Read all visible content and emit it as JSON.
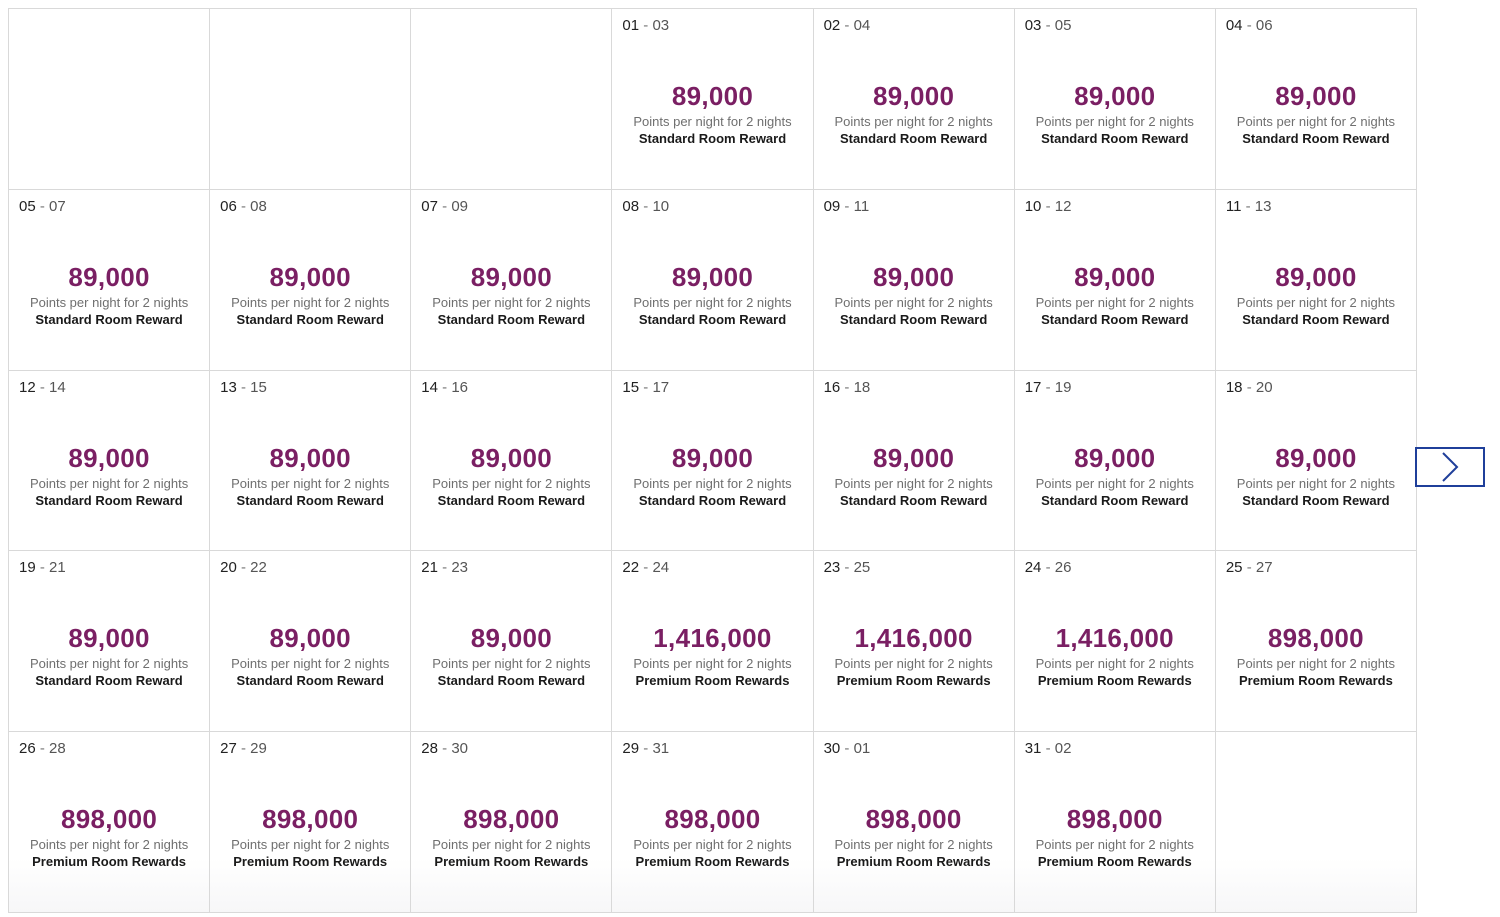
{
  "calendar": {
    "cells": [
      {
        "empty": true
      },
      {
        "empty": true
      },
      {
        "empty": true
      },
      {
        "start": "01",
        "end": "03",
        "points": "89,000",
        "subtitle": "Points per night for 2 nights",
        "reward": "Standard Room Reward"
      },
      {
        "start": "02",
        "end": "04",
        "points": "89,000",
        "subtitle": "Points per night for 2 nights",
        "reward": "Standard Room Reward"
      },
      {
        "start": "03",
        "end": "05",
        "points": "89,000",
        "subtitle": "Points per night for 2 nights",
        "reward": "Standard Room Reward"
      },
      {
        "start": "04",
        "end": "06",
        "points": "89,000",
        "subtitle": "Points per night for 2 nights",
        "reward": "Standard Room Reward"
      },
      {
        "start": "05",
        "end": "07",
        "points": "89,000",
        "subtitle": "Points per night for 2 nights",
        "reward": "Standard Room Reward"
      },
      {
        "start": "06",
        "end": "08",
        "points": "89,000",
        "subtitle": "Points per night for 2 nights",
        "reward": "Standard Room Reward"
      },
      {
        "start": "07",
        "end": "09",
        "points": "89,000",
        "subtitle": "Points per night for 2 nights",
        "reward": "Standard Room Reward"
      },
      {
        "start": "08",
        "end": "10",
        "points": "89,000",
        "subtitle": "Points per night for 2 nights",
        "reward": "Standard Room Reward"
      },
      {
        "start": "09",
        "end": "11",
        "points": "89,000",
        "subtitle": "Points per night for 2 nights",
        "reward": "Standard Room Reward"
      },
      {
        "start": "10",
        "end": "12",
        "points": "89,000",
        "subtitle": "Points per night for 2 nights",
        "reward": "Standard Room Reward"
      },
      {
        "start": "11",
        "end": "13",
        "points": "89,000",
        "subtitle": "Points per night for 2 nights",
        "reward": "Standard Room Reward"
      },
      {
        "start": "12",
        "end": "14",
        "points": "89,000",
        "subtitle": "Points per night for 2 nights",
        "reward": "Standard Room Reward"
      },
      {
        "start": "13",
        "end": "15",
        "points": "89,000",
        "subtitle": "Points per night for 2 nights",
        "reward": "Standard Room Reward"
      },
      {
        "start": "14",
        "end": "16",
        "points": "89,000",
        "subtitle": "Points per night for 2 nights",
        "reward": "Standard Room Reward"
      },
      {
        "start": "15",
        "end": "17",
        "points": "89,000",
        "subtitle": "Points per night for 2 nights",
        "reward": "Standard Room Reward"
      },
      {
        "start": "16",
        "end": "18",
        "points": "89,000",
        "subtitle": "Points per night for 2 nights",
        "reward": "Standard Room Reward"
      },
      {
        "start": "17",
        "end": "19",
        "points": "89,000",
        "subtitle": "Points per night for 2 nights",
        "reward": "Standard Room Reward"
      },
      {
        "start": "18",
        "end": "20",
        "points": "89,000",
        "subtitle": "Points per night for 2 nights",
        "reward": "Standard Room Reward"
      },
      {
        "start": "19",
        "end": "21",
        "points": "89,000",
        "subtitle": "Points per night for 2 nights",
        "reward": "Standard Room Reward"
      },
      {
        "start": "20",
        "end": "22",
        "points": "89,000",
        "subtitle": "Points per night for 2 nights",
        "reward": "Standard Room Reward"
      },
      {
        "start": "21",
        "end": "23",
        "points": "89,000",
        "subtitle": "Points per night for 2 nights",
        "reward": "Standard Room Reward"
      },
      {
        "start": "22",
        "end": "24",
        "points": "1,416,000",
        "subtitle": "Points per night for 2 nights",
        "reward": "Premium Room Rewards"
      },
      {
        "start": "23",
        "end": "25",
        "points": "1,416,000",
        "subtitle": "Points per night for 2 nights",
        "reward": "Premium Room Rewards"
      },
      {
        "start": "24",
        "end": "26",
        "points": "1,416,000",
        "subtitle": "Points per night for 2 nights",
        "reward": "Premium Room Rewards"
      },
      {
        "start": "25",
        "end": "27",
        "points": "898,000",
        "subtitle": "Points per night for 2 nights",
        "reward": "Premium Room Rewards"
      },
      {
        "start": "26",
        "end": "28",
        "points": "898,000",
        "subtitle": "Points per night for 2 nights",
        "reward": "Premium Room Rewards"
      },
      {
        "start": "27",
        "end": "29",
        "points": "898,000",
        "subtitle": "Points per night for 2 nights",
        "reward": "Premium Room Rewards"
      },
      {
        "start": "28",
        "end": "30",
        "points": "898,000",
        "subtitle": "Points per night for 2 nights",
        "reward": "Premium Room Rewards"
      },
      {
        "start": "29",
        "end": "31",
        "points": "898,000",
        "subtitle": "Points per night for 2 nights",
        "reward": "Premium Room Rewards"
      },
      {
        "start": "30",
        "end": "01",
        "points": "898,000",
        "subtitle": "Points per night for 2 nights",
        "reward": "Premium Room Rewards"
      },
      {
        "start": "31",
        "end": "02",
        "points": "898,000",
        "subtitle": "Points per night for 2 nights",
        "reward": "Premium Room Rewards"
      },
      {
        "empty": true
      }
    ],
    "date_separator": "-"
  },
  "next_button": {
    "icon": "chevron-right-icon",
    "color": "#1f3f9a"
  },
  "colors": {
    "points": "#7a1f63",
    "grid_border": "#d9d9d9"
  }
}
